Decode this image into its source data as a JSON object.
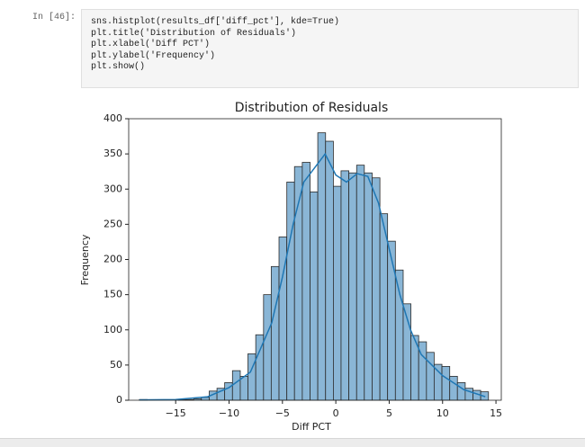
{
  "cell": {
    "prompt": "In [46]:",
    "code": [
      "sns.histplot(results_df['diff_pct'], kde=True)",
      "plt.title('Distribution of Residuals')",
      "plt.xlabel('Diff PCT')",
      "plt.ylabel('Frequency')",
      "plt.show()"
    ]
  },
  "chart_data": {
    "type": "histogram",
    "title": "Distribution of Residuals",
    "x_label": "Diff PCT",
    "y_label": "Frequency",
    "bins": [
      -18.4,
      -17.67,
      -16.95,
      -16.22,
      -15.49,
      -14.77,
      -14.04,
      -13.31,
      -12.59,
      -11.86,
      -11.13,
      -10.41,
      -9.68,
      -8.95,
      -8.23,
      -7.5,
      -6.77,
      -6.05,
      -5.32,
      -4.59,
      -3.87,
      -3.14,
      -2.41,
      -1.69,
      -0.96,
      -0.23,
      0.49,
      1.22,
      1.95,
      2.67,
      3.4,
      4.13,
      4.85,
      5.58,
      6.31,
      7.03,
      7.76,
      8.49,
      9.21,
      9.94,
      10.67,
      11.39,
      12.12,
      12.85,
      13.57,
      14.3
    ],
    "values": [
      1,
      0,
      0,
      0,
      0,
      1,
      1,
      2,
      4,
      13,
      17,
      25,
      42,
      34,
      66,
      93,
      150,
      190,
      232,
      310,
      332,
      338,
      296,
      380,
      368,
      304,
      326,
      323,
      334,
      323,
      316,
      265,
      226,
      185,
      137,
      92,
      83,
      68,
      51,
      48,
      34,
      25,
      17,
      14,
      12
    ],
    "color": "#8ab6d6",
    "edge_color": "#2b2b2b",
    "kde": {
      "color": "#1f77b4",
      "x": [
        -18.4,
        -15,
        -12,
        -10,
        -8,
        -6,
        -5,
        -4,
        -3,
        -2,
        -1,
        0,
        1,
        2,
        3,
        4,
        5,
        6,
        7,
        8,
        10,
        12,
        14
      ],
      "values": [
        0.5,
        1,
        5,
        18,
        40,
        110,
        175,
        250,
        310,
        330,
        350,
        320,
        310,
        322,
        318,
        280,
        215,
        150,
        100,
        65,
        35,
        15,
        5
      ]
    },
    "xlim": [
      -19.4,
      15.5
    ],
    "ylim": [
      0,
      400
    ],
    "xticks": [
      {
        "value": -15,
        "label": "−15"
      },
      {
        "value": -10,
        "label": "−10"
      },
      {
        "value": -5,
        "label": "−5"
      },
      0,
      5,
      10,
      15
    ],
    "yticks": [
      0,
      50,
      100,
      150,
      200,
      250,
      300,
      350,
      400
    ]
  }
}
